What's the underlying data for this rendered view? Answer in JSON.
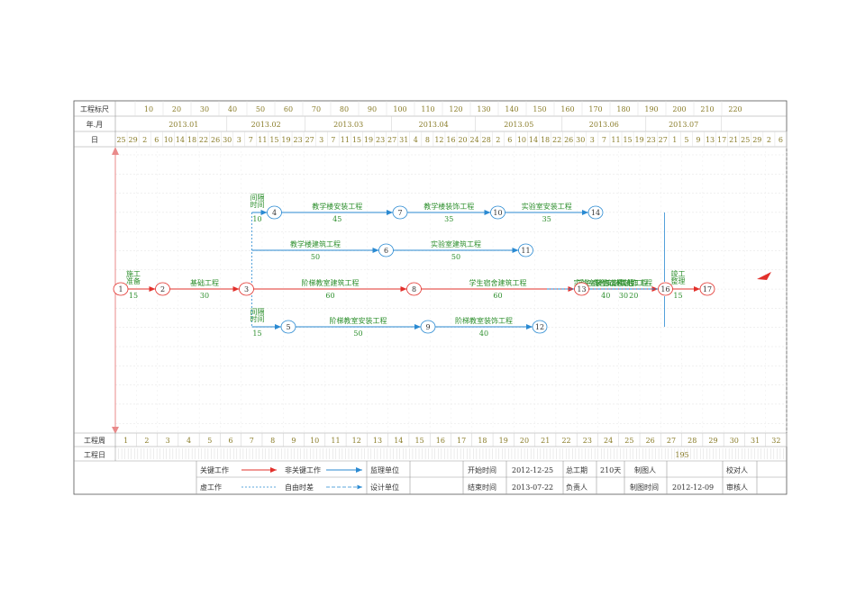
{
  "header": {
    "row1_label": "工程标尺",
    "row2_label": "年.月",
    "row3_label": "日",
    "ruler_ticks": [
      "10",
      "20",
      "30",
      "40",
      "50",
      "60",
      "70",
      "80",
      "90",
      "100",
      "110",
      "120",
      "130",
      "140",
      "150",
      "160",
      "170",
      "180",
      "190",
      "200",
      "210",
      "220"
    ],
    "months": [
      "2013.01",
      "2013.02",
      "2013.03",
      "2013.04",
      "2013.05",
      "2013.06",
      "2013.07"
    ],
    "days": [
      "25",
      "29",
      "2",
      "6",
      "10",
      "14",
      "18",
      "22",
      "26",
      "30",
      "3",
      "7",
      "11",
      "15",
      "19",
      "23",
      "27",
      "3",
      "7",
      "11",
      "15",
      "19",
      "23",
      "27",
      "31",
      "4",
      "8",
      "12",
      "16",
      "20",
      "24",
      "28",
      "2",
      "6",
      "10",
      "14",
      "18",
      "22",
      "26",
      "30",
      "3",
      "7",
      "11",
      "15",
      "19",
      "23",
      "27",
      "1",
      "5",
      "9",
      "13",
      "17",
      "21",
      "25",
      "29",
      "2",
      "6"
    ]
  },
  "network": {
    "nodes": [
      {
        "id": "1",
        "day": 0,
        "lane": 3
      },
      {
        "id": "2",
        "day": 15,
        "lane": 3
      },
      {
        "id": "3",
        "day": 45,
        "lane": 3
      },
      {
        "id": "4",
        "day": 55,
        "lane": 1
      },
      {
        "id": "5",
        "day": 60,
        "lane": 4
      },
      {
        "id": "6",
        "day": 95,
        "lane": 2
      },
      {
        "id": "7",
        "day": 100,
        "lane": 1
      },
      {
        "id": "8",
        "day": 105,
        "lane": 3
      },
      {
        "id": "9",
        "day": 110,
        "lane": 4
      },
      {
        "id": "10",
        "day": 135,
        "lane": 1
      },
      {
        "id": "11",
        "day": 145,
        "lane": 2
      },
      {
        "id": "12",
        "day": 150,
        "lane": 4
      },
      {
        "id": "13",
        "day": 165,
        "lane": 3
      },
      {
        "id": "14",
        "day": 170,
        "lane": 1
      },
      {
        "id": "16",
        "day": 195,
        "lane": 3
      },
      {
        "id": "17",
        "day": 210,
        "lane": 3
      }
    ],
    "activities": [
      {
        "from": "1",
        "to": "2",
        "name": "施工准备",
        "duration": "15",
        "critical": true
      },
      {
        "from": "2",
        "to": "3",
        "name": "基础工程",
        "duration": "30",
        "critical": true
      },
      {
        "from": "4",
        "to": "7",
        "name": "教学楼安装工程",
        "duration": "45",
        "critical": false
      },
      {
        "from": "7",
        "to": "10",
        "name": "教学楼装饰工程",
        "duration": "35",
        "critical": false
      },
      {
        "from": "10",
        "to": "14",
        "name": "实验室安装工程",
        "duration": "35",
        "critical": false
      },
      {
        "from": "14",
        "to": "16",
        "name": "其他工程",
        "duration": "20",
        "critical": false,
        "float": true
      },
      {
        "from": "3",
        "to": "6",
        "name": "教学楼建筑工程",
        "duration": "50",
        "critical": false
      },
      {
        "from": "6",
        "to": "11",
        "name": "实验室建筑工程",
        "duration": "50",
        "critical": false
      },
      {
        "from": "11",
        "to": "16",
        "name": "实验室装饰工程",
        "duration": "",
        "critical": false
      },
      {
        "from": "3",
        "to": "8",
        "name": "阶梯教室建筑工程",
        "duration": "60",
        "critical": true
      },
      {
        "from": "8",
        "to": "13",
        "name": "学生宿舍建筑工程",
        "duration": "60",
        "critical": true
      },
      {
        "from": "13",
        "to": "16",
        "name": "学生宿舍装饰工程",
        "duration": "30",
        "critical": true
      },
      {
        "from": "5",
        "to": "9",
        "name": "阶梯教室安装工程",
        "duration": "50",
        "critical": false
      },
      {
        "from": "9",
        "to": "12",
        "name": "阶梯教室装饰工程",
        "duration": "40",
        "critical": false
      },
      {
        "from": "12",
        "to": "16",
        "name": "学生宿舍安装工程",
        "duration": "40",
        "critical": false,
        "float": true
      },
      {
        "from": "16",
        "to": "17",
        "name": "竣工整理",
        "duration": "15",
        "critical": true
      },
      {
        "from": "3",
        "to": "4",
        "name": "间隔时间",
        "duration": "10",
        "critical": false
      },
      {
        "from": "3",
        "to": "5",
        "name": "间隔时间",
        "duration": "15",
        "critical": false
      }
    ]
  },
  "footer": {
    "week_label": "工程周",
    "weeks": [
      "1",
      "2",
      "3",
      "4",
      "5",
      "6",
      "7",
      "8",
      "9",
      "10",
      "11",
      "12",
      "13",
      "14",
      "15",
      "16",
      "17",
      "18",
      "19",
      "20",
      "21",
      "22",
      "23",
      "24",
      "25",
      "26",
      "27",
      "28",
      "29",
      "30",
      "31",
      "32"
    ],
    "dayrow_label": "工程日",
    "dayrow_value": "195"
  },
  "legend": {
    "critical": "关键工作",
    "noncritical": "非关键工作",
    "dummy": "虚工作",
    "free_float": "自由时差",
    "supervisor": "监理单位",
    "designer": "设计单位",
    "start_label": "开始时间",
    "start_value": "2012-12-25",
    "end_label": "结束时间",
    "end_value": "2013-07-22",
    "total_label": "总工期",
    "total_value": "210天",
    "owner_label": "负责人",
    "drafter_label": "制图人",
    "drawdate_label": "制图时间",
    "drawdate_value": "2012-12-09",
    "checker_label": "校对人",
    "reviewer_label": "审核人"
  },
  "colors": {
    "critical": "#e2302b",
    "noncritical": "#2a8ad2",
    "text": "#2d8f2d",
    "ruler": "#8a7d2a",
    "grid": "#cccccc"
  }
}
